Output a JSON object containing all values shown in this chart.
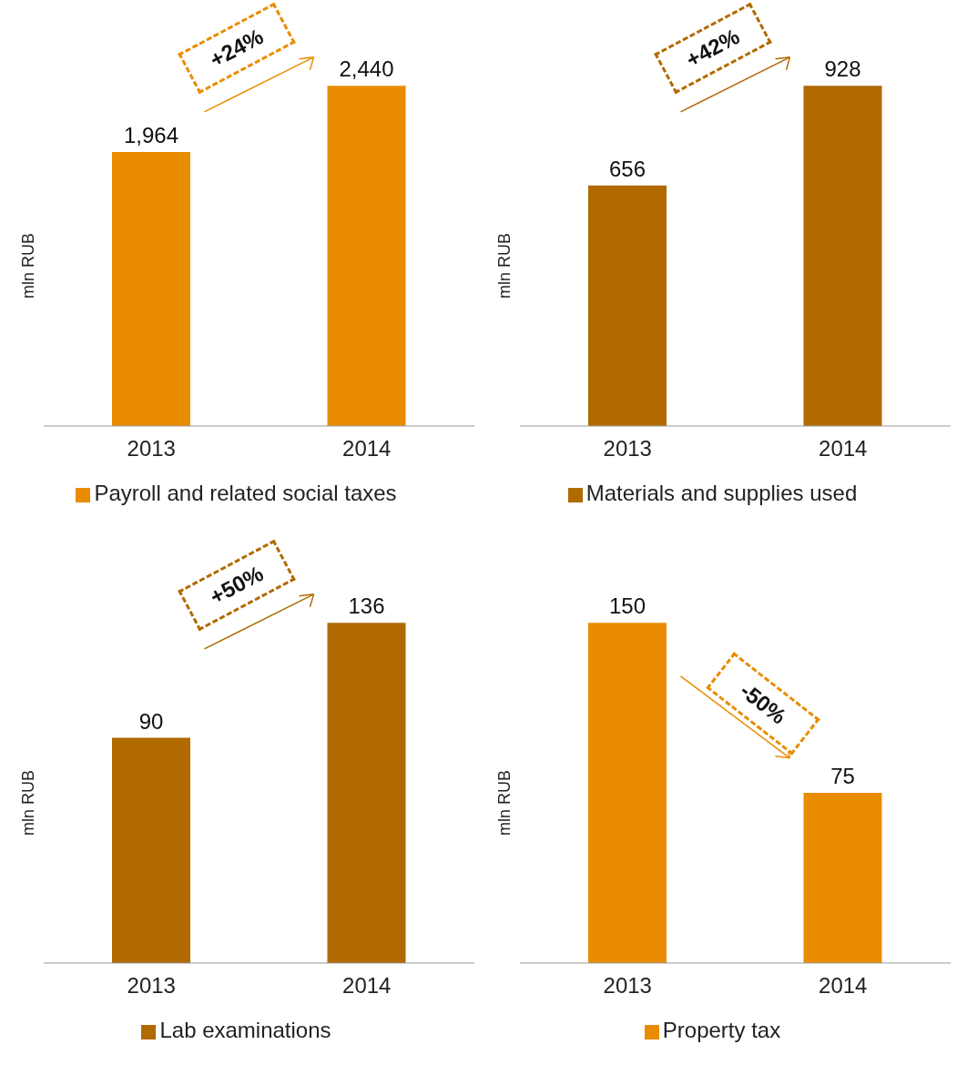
{
  "chart_data": [
    {
      "type": "bar",
      "categories": [
        "2013",
        "2014"
      ],
      "series": [
        {
          "name": "Payroll and related social taxes",
          "color": "#ea8c00",
          "values": [
            1964,
            2440
          ],
          "value_labels": [
            "1,964",
            "2,440"
          ]
        }
      ],
      "ylabel": "mln RUB",
      "legend": "bottom",
      "annotations": [
        "+24%"
      ]
    },
    {
      "type": "bar",
      "categories": [
        "2013",
        "2014"
      ],
      "series": [
        {
          "name": "Materials and supplies used",
          "color": "#b06a00",
          "values": [
            656,
            928
          ]
        }
      ],
      "ylabel": "mln RUB",
      "data_labels": true,
      "legend": "bottom",
      "annotations": [
        "+42%"
      ]
    },
    {
      "type": "bar",
      "categories": [
        "2013",
        "2014"
      ],
      "series": [
        {
          "name": "Lab examinations",
          "color": "#b06a00",
          "values": [
            90,
            136
          ]
        }
      ],
      "ylabel": "mln RUB",
      "data_labels": true,
      "legend": "bottom",
      "annotations": [
        "+50%"
      ]
    },
    {
      "type": "bar",
      "categories": [
        "2013",
        "2014"
      ],
      "series": [
        {
          "name": "Property tax",
          "color": "#ea8c00",
          "values": [
            150,
            75
          ]
        }
      ],
      "ylabel": "mln RUB",
      "data_labels": true,
      "legend": "bottom",
      "annotations": [
        "-50%"
      ]
    }
  ]
}
